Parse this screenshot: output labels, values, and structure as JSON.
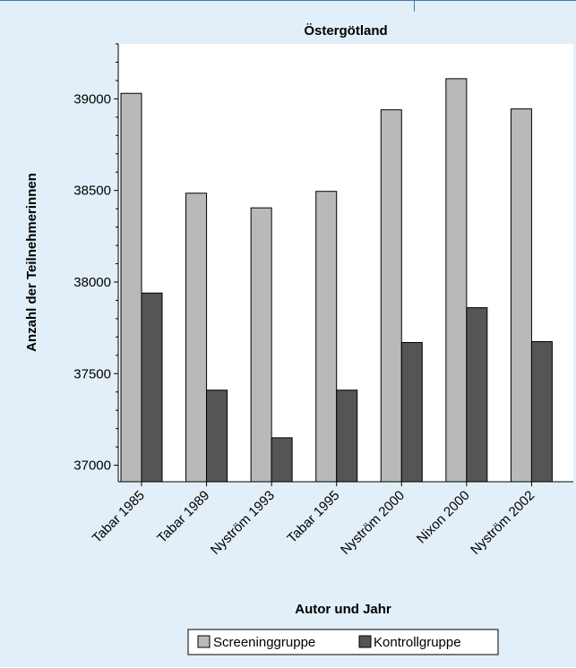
{
  "colors": {
    "panel_bg": "#e3eff8",
    "plot_bg": "#ffffff",
    "screening": "#b9b9b9",
    "kontroll": "#555555",
    "bar_stroke": "#000000",
    "frame_line": "#3f78b5"
  },
  "chart_data": {
    "type": "bar",
    "title": "Östergötland",
    "xlabel": "Autor und Jahr",
    "ylabel": "Anzahl der Teilnehmerinnen",
    "categories": [
      "Tabar 1985",
      "Tabar 1989",
      "Nyström 1993",
      "Tabar 1995",
      "Nyström 2000",
      "Nixon 2000",
      "Nyström 2002"
    ],
    "series": [
      {
        "name": "Screeninggruppe",
        "values": [
          39030,
          38485,
          38405,
          38495,
          38940,
          39110,
          38945
        ]
      },
      {
        "name": "Kontrollgruppe",
        "values": [
          37940,
          37410,
          37150,
          37410,
          37670,
          37860,
          37675
        ]
      }
    ],
    "ylim": [
      36910,
      39300
    ],
    "yticks": [
      37000,
      37500,
      38000,
      38500,
      39000
    ],
    "grid": false,
    "legend_position": "bottom-center"
  }
}
